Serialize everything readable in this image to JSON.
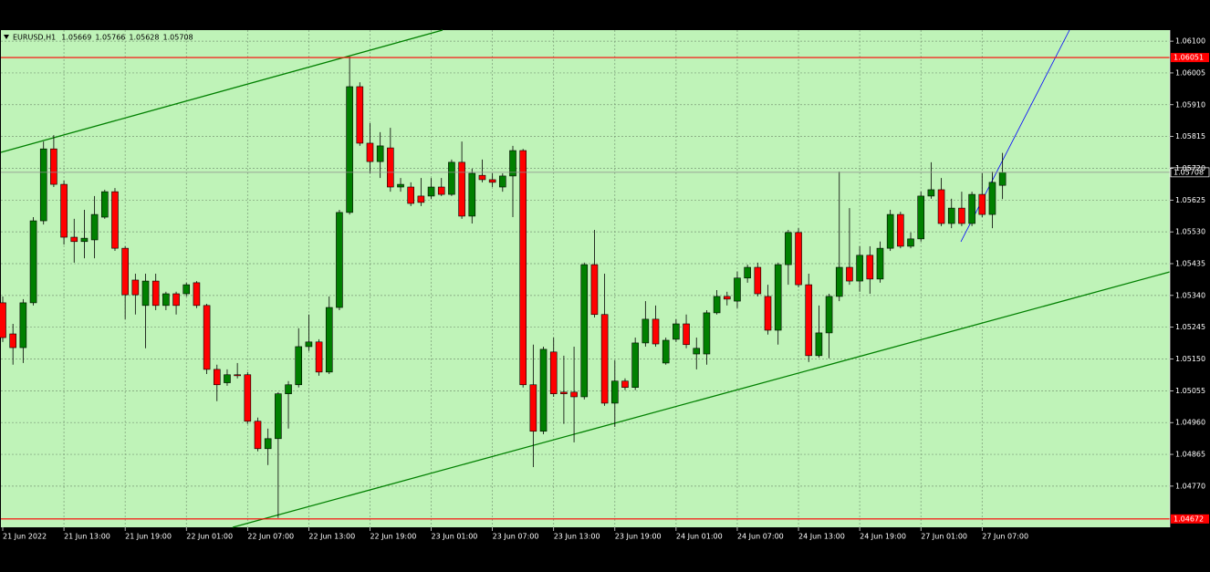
{
  "chart_data": {
    "type": "candlestick",
    "title": "EURUSD,H1",
    "up_color": "#008000",
    "down_color": "#ff0000",
    "background": "#bff3b8",
    "grid": true,
    "ylim": [
      1.04647,
      1.06133
    ],
    "yticks": [
      {
        "value": 1.061,
        "label": "1.06100"
      },
      1.06005,
      {
        "value": 1.0591,
        "label": "1.05910"
      },
      1.05815,
      {
        "value": 1.0572,
        "label": "1.05720"
      },
      1.05625,
      {
        "value": 1.0553,
        "label": "1.05530"
      },
      1.05435,
      {
        "value": 1.0534,
        "label": "1.05340"
      },
      1.05245,
      {
        "value": 1.0515,
        "label": "1.05150"
      },
      1.05055,
      {
        "value": 1.0496,
        "label": "1.04960"
      },
      1.04865,
      {
        "value": 1.0477,
        "label": "1.04770"
      }
    ],
    "xticks": [
      {
        "value": 0,
        "label": "21 Jun 2022"
      },
      {
        "value": 6,
        "label": "21 Jun 13:00"
      },
      {
        "value": 12,
        "label": "21 Jun 19:00"
      },
      {
        "value": 18,
        "label": "22 Jun 01:00"
      },
      {
        "value": 24,
        "label": "22 Jun 07:00"
      },
      {
        "value": 30,
        "label": "22 Jun 13:00"
      },
      {
        "value": 36,
        "label": "22 Jun 19:00"
      },
      {
        "value": 42,
        "label": "23 Jun 01:00"
      },
      {
        "value": 48,
        "label": "23 Jun 07:00"
      },
      {
        "value": 54,
        "label": "23 Jun 13:00"
      },
      {
        "value": 60,
        "label": "23 Jun 19:00"
      },
      {
        "value": 66,
        "label": "24 Jun 01:00"
      },
      {
        "value": 72,
        "label": "24 Jun 07:00"
      },
      {
        "value": 78,
        "label": "24 Jun 13:00"
      },
      {
        "value": 84,
        "label": "24 Jun 19:00"
      },
      {
        "value": 90,
        "label": "27 Jun 01:00"
      },
      {
        "value": 96,
        "label": "27 Jun 07:00"
      }
    ],
    "hlines": [
      {
        "value": 1.06051,
        "color": "#ff0000"
      },
      {
        "value": 1.04672,
        "color": "#ff0000"
      }
    ],
    "open": [
      1.05318,
      1.05225,
      1.05184,
      1.05318,
      1.05563,
      1.05778,
      1.05672,
      1.05514,
      1.05501,
      1.05506,
      1.05574,
      1.0565,
      1.05481,
      1.05386,
      1.0531,
      1.05383,
      1.0531,
      1.05345,
      1.05345,
      1.05378,
      1.0531,
      1.05119,
      1.05079,
      1.05103,
      1.05103,
      1.04964,
      1.04882,
      1.04912,
      1.05046,
      1.05073,
      1.05187,
      1.05201,
      1.05111,
      1.05304,
      1.05588,
      1.05964,
      1.05795,
      1.0574,
      1.05781,
      1.05664,
      1.05664,
      1.05637,
      1.05637,
      1.05664,
      1.05642,
      1.05738,
      1.05577,
      1.05699,
      1.05686,
      1.05664,
      1.05697,
      1.05773,
      1.05073,
      1.04934,
      1.05171,
      1.05051,
      1.05051,
      1.05037,
      1.05432,
      1.05283,
      1.05018,
      1.05084,
      1.05065,
      1.05198,
      1.05269,
      1.05138,
      1.05209,
      1.05255,
      1.05165,
      1.05165,
      1.05288,
      1.05337,
      1.05323,
      1.05392,
      1.05424,
      1.05337,
      1.05236,
      1.05432,
      1.05528,
      1.05372,
      1.0516,
      1.05228,
      1.05337,
      1.05424,
      1.05383,
      1.0546,
      1.05389,
      1.05481,
      1.05582,
      1.05487,
      1.05509,
      1.05637,
      1.05656,
      1.05555,
      1.05601,
      1.05555,
      1.05642,
      1.05582,
      1.05669
    ],
    "high": [
      1.05337,
      1.05255,
      1.05329,
      1.05574,
      1.058,
      1.05819,
      1.05683,
      1.05569,
      1.05596,
      1.05637,
      1.05656,
      1.05661,
      1.05487,
      1.05405,
      1.05405,
      1.05405,
      1.05351,
      1.05351,
      1.05378,
      1.05383,
      1.05315,
      1.05133,
      1.05119,
      1.05138,
      1.05111,
      1.04975,
      1.04942,
      1.05051,
      1.05084,
      1.05242,
      1.05283,
      1.05209,
      1.05337,
      1.05596,
      1.06054,
      1.05977,
      1.05855,
      1.05828,
      1.05841,
      1.05691,
      1.05678,
      1.05691,
      1.05691,
      1.05691,
      1.05746,
      1.058,
      1.05719,
      1.05746,
      1.05705,
      1.05705,
      1.05787,
      1.05778,
      1.05193,
      1.05187,
      1.05214,
      1.0516,
      1.05187,
      1.05438,
      1.05536,
      1.05405,
      1.05146,
      1.05092,
      1.05214,
      1.05323,
      1.0531,
      1.05214,
      1.05269,
      1.05283,
      1.05214,
      1.05296,
      1.05356,
      1.05351,
      1.05411,
      1.05432,
      1.05438,
      1.05372,
      1.05438,
      1.05536,
      1.05541,
      1.05405,
      1.0531,
      1.05345,
      1.0571,
      1.05601,
      1.05487,
      1.05487,
      1.05501,
      1.05596,
      1.0559,
      1.05528,
      1.0565,
      1.05738,
      1.05691,
      1.05629,
      1.0565,
      1.0565,
      1.05705,
      1.0571,
      1.05766
    ],
    "low": [
      1.05201,
      1.05133,
      1.05138,
      1.0531,
      1.05552,
      1.05664,
      1.05492,
      1.05438,
      1.05451,
      1.05451,
      1.05569,
      1.05473,
      1.05269,
      1.05283,
      1.05182,
      1.05296,
      1.05296,
      1.05283,
      1.05337,
      1.05302,
      1.05105,
      1.05024,
      1.0507,
      1.05092,
      1.04956,
      1.04874,
      1.04833,
      1.04675,
      1.04942,
      1.05065,
      1.05174,
      1.051,
      1.05105,
      1.05296,
      1.05582,
      1.05787,
      1.05705,
      1.05691,
      1.0565,
      1.0565,
      1.05607,
      1.05607,
      1.05629,
      1.05637,
      1.05637,
      1.05569,
      1.05555,
      1.05678,
      1.05664,
      1.0565,
      1.05574,
      1.05065,
      1.04827,
      1.04925,
      1.05037,
      1.04956,
      1.04901,
      1.05029,
      1.05274,
      1.0501,
      1.04947,
      1.05057,
      1.05057,
      1.05187,
      1.05187,
      1.05133,
      1.05201,
      1.05182,
      1.05119,
      1.05133,
      1.05283,
      1.0531,
      1.05302,
      1.05378,
      1.05337,
      1.05223,
      1.05193,
      1.05372,
      1.05364,
      1.05141,
      1.05154,
      1.05152,
      1.05323,
      1.05372,
      1.05351,
      1.05345,
      1.05378,
      1.05473,
      1.05481,
      1.05481,
      1.05501,
      1.05629,
      1.05547,
      1.05541,
      1.05547,
      1.05547,
      1.05574,
      1.05541,
      1.05628
    ],
    "close": [
      1.05214,
      1.05184,
      1.05318,
      1.05563,
      1.05778,
      1.05672,
      1.05514,
      1.05501,
      1.05511,
      1.05582,
      1.0565,
      1.05481,
      1.05342,
      1.05342,
      1.05383,
      1.0531,
      1.05345,
      1.0531,
      1.05372,
      1.0531,
      1.05119,
      1.05073,
      1.05103,
      1.051,
      1.04964,
      1.04882,
      1.04912,
      1.05046,
      1.05073,
      1.05187,
      1.05201,
      1.05111,
      1.05304,
      1.05588,
      1.05964,
      1.05795,
      1.0574,
      1.05787,
      1.05664,
      1.05672,
      1.05615,
      1.05618,
      1.05664,
      1.05642,
      1.05738,
      1.05577,
      1.05705,
      1.05686,
      1.05678,
      1.05697,
      1.05773,
      1.05073,
      1.04934,
      1.05179,
      1.05046,
      1.05046,
      1.05037,
      1.05432,
      1.05283,
      1.05018,
      1.05084,
      1.05065,
      1.05198,
      1.05269,
      1.05195,
      1.05206,
      1.05255,
      1.05193,
      1.05182,
      1.05288,
      1.05337,
      1.05329,
      1.05392,
      1.05424,
      1.05345,
      1.05236,
      1.05432,
      1.05528,
      1.05372,
      1.0516,
      1.05228,
      1.05337,
      1.05424,
      1.05383,
      1.0546,
      1.05389,
      1.05481,
      1.05582,
      1.05487,
      1.05509,
      1.05637,
      1.05656,
      1.05555,
      1.05601,
      1.05555,
      1.05642,
      1.05582,
      1.05678,
      1.05708
    ]
  }
}
